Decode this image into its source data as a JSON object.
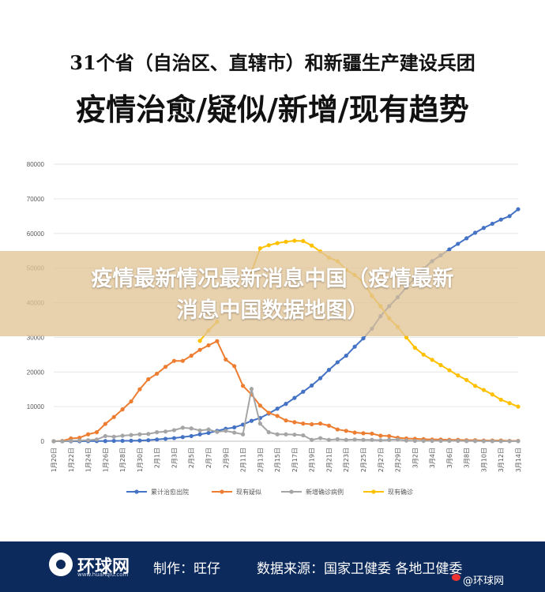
{
  "header": {
    "line1": "31个省（自治区、直辖市）和新疆生产建设兵团",
    "line2": "疫情治愈/疑似/新增/现有趋势"
  },
  "overlay": {
    "line1": "疫情最新情况最新消息中国（疫情最新",
    "line2": "消息中国数据地图）"
  },
  "footer": {
    "brand": "环球网",
    "brand_url": "www.huanqiu.com",
    "maker": "制作：旺仔",
    "source": "数据来源：国家卫健委 各地卫健委",
    "weibo": "@环球网"
  },
  "colors": {
    "blue": "#4472c4",
    "orange": "#ed7d31",
    "gray": "#a5a5a5",
    "yellow": "#ffc000",
    "footer_bg": "#0c2a5c"
  },
  "chart_data": {
    "type": "line",
    "title": "",
    "xlabel": "",
    "ylabel": "",
    "ylim": [
      0,
      80000
    ],
    "yticks": [
      0,
      10000,
      20000,
      30000,
      40000,
      50000,
      60000,
      70000,
      80000
    ],
    "grid": "horizontal",
    "legend_position": "bottom",
    "x": [
      "1月20日",
      "1月21日",
      "1月22日",
      "1月23日",
      "1月24日",
      "1月25日",
      "1月26日",
      "1月27日",
      "1月28日",
      "1月29日",
      "1月30日",
      "1月31日",
      "2月1日",
      "2月2日",
      "2月3日",
      "2月4日",
      "2月5日",
      "2月6日",
      "2月7日",
      "2月8日",
      "2月9日",
      "2月10日",
      "2月11日",
      "2月12日",
      "2月13日",
      "2月14日",
      "2月15日",
      "2月16日",
      "2月17日",
      "2月18日",
      "2月19日",
      "2月20日",
      "2月21日",
      "2月22日",
      "2月23日",
      "2月24日",
      "2月25日",
      "2月26日",
      "2月27日",
      "2月28日",
      "2月29日",
      "3月1日",
      "3月2日",
      "3月3日",
      "3月4日",
      "3月5日",
      "3月6日",
      "3月7日",
      "3月8日",
      "3月9日",
      "3月10日",
      "3月11日",
      "3月12日",
      "3月13日",
      "3月14日"
    ],
    "xtick_labels": [
      "1月20日",
      "1月22日",
      "1月24日",
      "1月26日",
      "1月28日",
      "1月30日",
      "2月1日",
      "2月3日",
      "2月5日",
      "2月7日",
      "2月9日",
      "2月11日",
      "2月13日",
      "2月15日",
      "2月17日",
      "2月19日",
      "2月21日",
      "2月23日",
      "2月25日",
      "2月27日",
      "2月29日",
      "3月2日",
      "3月4日",
      "3月6日",
      "3月8日",
      "3月10日",
      "3月12日",
      "3月14日"
    ],
    "series": [
      {
        "name": "累计治愈出院",
        "color": "#4472c4",
        "values": [
          0,
          0,
          0,
          0,
          40,
          50,
          60,
          100,
          120,
          150,
          200,
          300,
          500,
          700,
          900,
          1200,
          1500,
          2000,
          2400,
          3000,
          3600,
          4000,
          4800,
          5900,
          6700,
          8000,
          9400,
          10800,
          12500,
          14300,
          16100,
          18200,
          20600,
          22800,
          24700,
          27300,
          29700,
          32500,
          36100,
          39000,
          41600,
          44400,
          47200,
          49800,
          52000,
          53700,
          55400,
          57000,
          58600,
          60200,
          61600,
          62800,
          64000,
          65000,
          67000
        ]
      },
      {
        "name": "现有疑似",
        "color": "#ed7d31",
        "values": [
          0,
          100,
          800,
          1000,
          2000,
          2600,
          5000,
          7000,
          9200,
          11500,
          15000,
          17900,
          19500,
          21500,
          23200,
          23200,
          24700,
          26400,
          27700,
          28900,
          23600,
          21700,
          16000,
          13500,
          10300,
          8200,
          7300,
          6000,
          5500,
          5100,
          4900,
          5100,
          4500,
          3400,
          3000,
          2500,
          2300,
          2200,
          1600,
          1500,
          1000,
          800,
          700,
          600,
          500,
          500,
          400,
          400,
          300,
          300,
          200,
          200,
          200,
          100,
          100
        ]
      },
      {
        "name": "新增确诊病例",
        "color": "#a5a5a5",
        "values": [
          0,
          0,
          100,
          200,
          300,
          500,
          1500,
          1300,
          1600,
          1800,
          2000,
          2100,
          2600,
          2800,
          3200,
          3900,
          3700,
          3100,
          3400,
          2700,
          3000,
          2500,
          2000,
          15100,
          5100,
          2600,
          2000,
          2000,
          1900,
          1700,
          400,
          900,
          400,
          600,
          400,
          500,
          400,
          400,
          300,
          400,
          500,
          200,
          100,
          100,
          100,
          100,
          100,
          100,
          50,
          50,
          20,
          20,
          10,
          10,
          20
        ]
      },
      {
        "name": "现有确诊",
        "color": "#ffc000",
        "values": [
          null,
          null,
          null,
          null,
          null,
          null,
          null,
          null,
          null,
          null,
          null,
          null,
          null,
          null,
          null,
          null,
          null,
          29000,
          32000,
          34500,
          null,
          null,
          null,
          49000,
          55700,
          56600,
          57200,
          57600,
          57900,
          57800,
          56500,
          54800,
          53000,
          52000,
          49500,
          48000,
          46000,
          42000,
          39000,
          35500,
          33000,
          30000,
          27000,
          25000,
          23500,
          22000,
          20500,
          19000,
          17700,
          16000,
          14800,
          13500,
          12000,
          11000,
          10000
        ]
      }
    ]
  }
}
